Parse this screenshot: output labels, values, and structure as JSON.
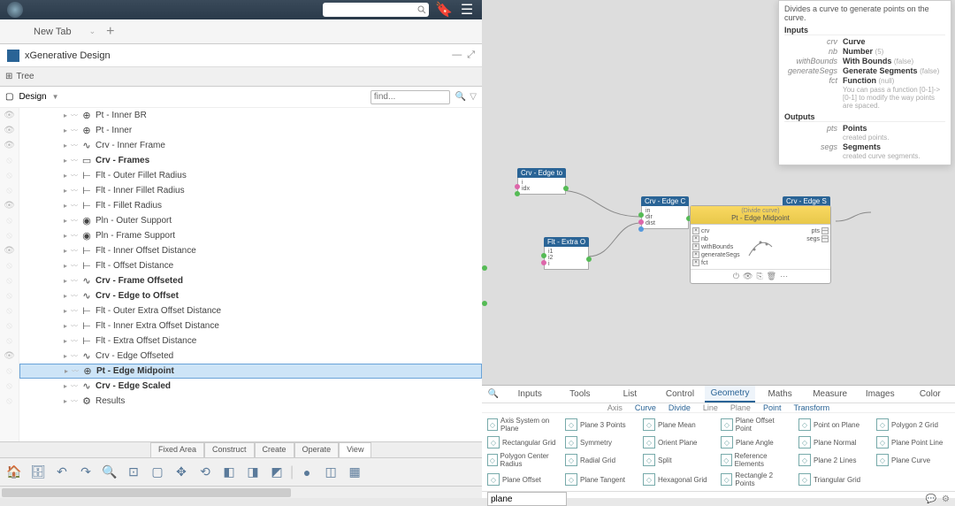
{
  "topbar": {
    "search_placeholder": ""
  },
  "tabs": {
    "new_tab": "New Tab"
  },
  "xgen": {
    "title": "xGenerative Design"
  },
  "tree": {
    "label": "Tree",
    "design_label": "Design",
    "find_placeholder": "find...",
    "items": [
      {
        "icon": "⊕",
        "label": "Pt - Inner BR",
        "vis": true,
        "bold": false
      },
      {
        "icon": "⊕",
        "label": "Pt - Inner",
        "vis": true,
        "bold": false
      },
      {
        "icon": "∿",
        "label": "Crv - Inner Frame",
        "vis": true,
        "bold": false
      },
      {
        "icon": "▭",
        "label": "Crv - Frames",
        "vis": false,
        "bold": true
      },
      {
        "icon": "⊢",
        "label": "Flt - Outer Fillet Radius",
        "vis": false,
        "bold": false
      },
      {
        "icon": "⊢",
        "label": "Flt - Inner Fillet Radius",
        "vis": false,
        "bold": false
      },
      {
        "icon": "⊢",
        "label": "Flt - Fillet Radius",
        "vis": true,
        "bold": false
      },
      {
        "icon": "◉",
        "label": "Pln - Outer Support",
        "vis": false,
        "bold": false
      },
      {
        "icon": "◉",
        "label": "Pln - Frame Support",
        "vis": false,
        "bold": false
      },
      {
        "icon": "⊢",
        "label": "Flt - Inner Offset Distance",
        "vis": true,
        "bold": false
      },
      {
        "icon": "⊢",
        "label": "Flt - Offset Distance",
        "vis": false,
        "bold": false
      },
      {
        "icon": "∿",
        "label": "Crv - Frame Offseted",
        "vis": false,
        "bold": true
      },
      {
        "icon": "∿",
        "label": "Crv - Edge to Offset",
        "vis": false,
        "bold": true
      },
      {
        "icon": "⊢",
        "label": "Flt - Outer Extra Offset Distance",
        "vis": false,
        "bold": false
      },
      {
        "icon": "⊢",
        "label": "Flt - Inner Extra Offset Distance",
        "vis": false,
        "bold": false
      },
      {
        "icon": "⊢",
        "label": "Flt - Extra Offset Distance",
        "vis": false,
        "bold": false
      },
      {
        "icon": "∿",
        "label": "Crv - Edge Offseted",
        "vis": true,
        "bold": false
      },
      {
        "icon": "⊕",
        "label": "Pt - Edge Midpoint",
        "vis": false,
        "bold": true,
        "selected": true
      },
      {
        "icon": "∿",
        "label": "Crv - Edge Scaled",
        "vis": false,
        "bold": true
      },
      {
        "icon": "⚙",
        "label": "Results",
        "vis": false,
        "bold": false
      }
    ]
  },
  "mode_tabs": [
    "Fixed Area",
    "Construct",
    "Create",
    "Operate",
    "View"
  ],
  "mode_active": 4,
  "tooltip": {
    "desc": "Divides a curve to generate points on the curve.",
    "inputs_label": "Inputs",
    "outputs_label": "Outputs",
    "inputs": [
      {
        "k": "crv",
        "name": "Curve",
        "def": ""
      },
      {
        "k": "nb",
        "name": "Number",
        "def": "(5)"
      },
      {
        "k": "withBounds",
        "name": "With Bounds",
        "def": "(false)"
      },
      {
        "k": "generateSegs",
        "name": "Generate Segments",
        "def": "(false)"
      },
      {
        "k": "fct",
        "name": "Function",
        "def": "(null)"
      }
    ],
    "inputs_hint": "You can pass a function [0-1]->[0-1] to modify the way points are spaced.",
    "outputs": [
      {
        "k": "pts",
        "name": "Points",
        "sub": "created points."
      },
      {
        "k": "segs",
        "name": "Segments",
        "sub": "created curve segments."
      }
    ]
  },
  "nodes": {
    "edge_to": {
      "title": "Crv - Edge to",
      "rows": [
        "i",
        "idx"
      ]
    },
    "edge_c": {
      "title": "Crv - Edge C",
      "rows": [
        "in",
        "dir",
        "dist"
      ]
    },
    "edge_s": {
      "title": "Crv - Edge S"
    },
    "extra_o": {
      "title": "Flt - Extra O",
      "rows": [
        "i1",
        "i2",
        "i"
      ]
    },
    "big": {
      "subtitle": "(Divide curve)",
      "title": "Pt - Edge Midpoint",
      "left": [
        "crv",
        "nb",
        "withBounds",
        "generateSegs",
        "fct"
      ],
      "right": [
        "pts",
        "segs"
      ]
    }
  },
  "palette": {
    "search_icon": "🔍",
    "cats": [
      "Inputs",
      "Tools",
      "List",
      "Control",
      "Geometry",
      "Maths",
      "Measure",
      "Images",
      "Color"
    ],
    "cat_active": 4,
    "subs": [
      "Axis",
      "Curve",
      "Divide",
      "Line",
      "Plane",
      "Point",
      "Transform"
    ],
    "sub_active": [
      1,
      2,
      5,
      6
    ],
    "items": [
      "Axis System on Plane",
      "Plane 3 Points",
      "Plane Mean",
      "Plane Offset Point",
      "Point on Plane",
      "Polygon 2 Grid",
      "Rectangular Grid",
      "Symmetry",
      "Orient Plane",
      "Plane Angle",
      "Plane Normal",
      "Plane Point Line",
      "Polygon Center Radius",
      "Radial Grid",
      "Split",
      "Reference Elements",
      "Plane 2 Lines",
      "Plane Curve",
      "Plane Offset",
      "Plane Tangent",
      "Hexagonal Grid",
      "Rectangle 2 Points",
      "Triangular Grid"
    ],
    "footer_input": "plane"
  },
  "colors": {
    "node_hdr": "#2a6496",
    "yellow": "#f2cd5d",
    "accent": "#2a8cca",
    "port_green": "#5b5",
    "port_pink": "#d6a",
    "port_blue": "#59d"
  }
}
